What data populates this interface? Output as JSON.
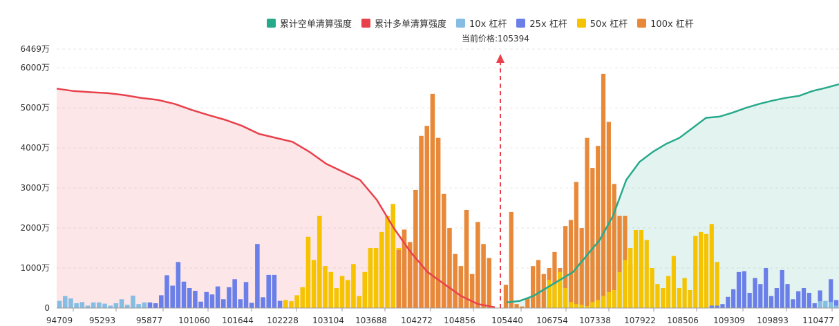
{
  "legend": [
    {
      "label": "累计空单清算强度",
      "color": "#26a98b"
    },
    {
      "label": "累计多单清算强度",
      "color": "#e8414b"
    },
    {
      "label": "10x 杠杆",
      "color": "#86bde3"
    },
    {
      "label": "25x 杠杆",
      "color": "#6b7fe8"
    },
    {
      "label": "50x 杠杆",
      "color": "#f5c300"
    },
    {
      "label": "100x 杠杆",
      "color": "#e8893a"
    }
  ],
  "current_price_label": "当前价格:105394",
  "chart_data": {
    "type": "bar",
    "current_price": 105394,
    "y_ticks": [
      "0",
      "1000万",
      "2000万",
      "3000万",
      "4000万",
      "5000万",
      "6000万",
      "6469万"
    ],
    "y_values": [
      0,
      1000,
      2000,
      3000,
      4000,
      5000,
      6000,
      6469
    ],
    "ylim": [
      0,
      6469
    ],
    "x_ticks": [
      "94709",
      "95293",
      "95877",
      "101060",
      "101644",
      "102228",
      "103104",
      "103688",
      "104272",
      "104856",
      "105440",
      "106754",
      "107338",
      "107922",
      "108506",
      "109309",
      "109893",
      "110477"
    ],
    "bars": {
      "leverage_10x": [
        180,
        300,
        240,
        120,
        150,
        60,
        140,
        140,
        110,
        60,
        120,
        220,
        80,
        310,
        100,
        140,
        170,
        180,
        150,
        60
      ],
      "leverage_25x": [
        140,
        120,
        320,
        820,
        560,
        1150,
        660,
        500,
        430,
        160,
        400,
        340,
        540,
        220,
        520,
        720,
        220,
        650,
        130,
        1600,
        270,
        830,
        830,
        180,
        60,
        60,
        100,
        280,
        470,
        900,
        920,
        380,
        750,
        600,
        1000,
        300,
        500,
        950,
        600,
        220,
        420,
        500,
        380,
        120,
        440,
        130,
        720,
        200,
        250,
        780,
        200,
        700
      ],
      "leverage_50x": [
        200,
        170,
        320,
        520,
        1780,
        1200,
        2300,
        1050,
        900,
        500,
        800,
        700,
        1100,
        300,
        900,
        1500,
        1500,
        1900,
        2300,
        2600,
        1500,
        500,
        500,
        100,
        700,
        600,
        900,
        500,
        150,
        100,
        80,
        50,
        150,
        200,
        300,
        400,
        450,
        900,
        1200,
        1500,
        1950,
        1950,
        1700,
        1000,
        600,
        500,
        800,
        1300,
        500,
        750,
        450,
        1800,
        1900,
        1850,
        2100,
        1150
      ],
      "leverage_100x": [
        1450,
        1960,
        1650,
        2950,
        4300,
        4550,
        5350,
        4250,
        2850,
        2000,
        1350,
        1050,
        2450,
        850,
        2150,
        1600,
        1250,
        580,
        2400,
        100,
        40,
        250,
        1050,
        1200,
        850,
        1000,
        1400,
        1000,
        2050,
        2200,
        3150,
        2000,
        4250,
        3500,
        4050,
        5850,
        4650,
        3100,
        2300,
        2300,
        1100,
        700
      ],
      "long_cumulative": [
        5480,
        5420,
        5390,
        5370,
        5320,
        5250,
        5200,
        5100,
        4950,
        4820,
        4700,
        4550,
        4350,
        4250,
        4150,
        3900,
        3600,
        3400,
        3200,
        2700,
        2000,
        1400,
        900,
        600,
        300,
        100,
        20
      ],
      "short_cumulative": [
        140,
        180,
        300,
        500,
        700,
        900,
        1300,
        1700,
        2300,
        3200,
        3650,
        3900,
        4100,
        4250,
        4500,
        4750,
        4780,
        4880,
        5000,
        5100,
        5180,
        5250,
        5300,
        5420,
        5500,
        5590
      ]
    }
  }
}
